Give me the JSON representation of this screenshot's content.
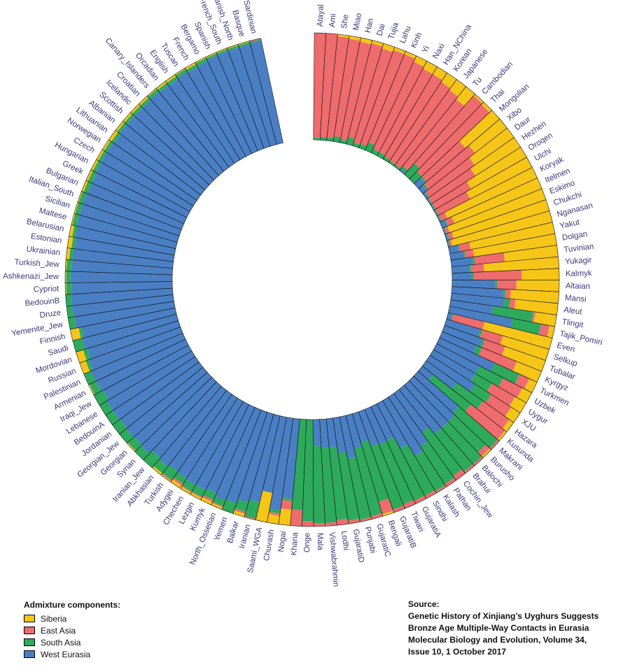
{
  "legend": {
    "title": "Admixture components:",
    "items": [
      {
        "label": "Siberia",
        "color": "#f5c518"
      },
      {
        "label": "East Asia",
        "color": "#ee6b6e"
      },
      {
        "label": "South Asia",
        "color": "#2eaa5c"
      },
      {
        "label": "West Eurasia",
        "color": "#4a7fc4"
      }
    ]
  },
  "source": {
    "heading": "Source:",
    "lines": [
      "Genetic History of Xinjiang’s Uyghurs Suggests",
      "Bronze Age Multiple-Way Contacts in Eurasia",
      "Molecular Biology and Evolution, Volume 34,",
      "Issue 10, 1 October 2017"
    ]
  },
  "chart_data": {
    "type": "circular-stacked-bar",
    "components": [
      "Siberia",
      "East Asia",
      "South Asia",
      "West Eurasia"
    ],
    "colors": [
      "#f5c518",
      "#ee6b6e",
      "#2eaa5c",
      "#4a7fc4"
    ],
    "populations": [
      {
        "name": "Atayal",
        "values": [
          0.0,
          0.98,
          0.02,
          0.0
        ]
      },
      {
        "name": "Ami",
        "values": [
          0.0,
          0.97,
          0.03,
          0.0
        ]
      },
      {
        "name": "She",
        "values": [
          0.02,
          0.95,
          0.03,
          0.0
        ]
      },
      {
        "name": "Miao",
        "values": [
          0.03,
          0.92,
          0.05,
          0.0
        ]
      },
      {
        "name": "Han",
        "values": [
          0.04,
          0.93,
          0.03,
          0.0
        ]
      },
      {
        "name": "Dai",
        "values": [
          0.03,
          0.9,
          0.07,
          0.0
        ]
      },
      {
        "name": "Tujia",
        "values": [
          0.05,
          0.92,
          0.03,
          0.0
        ]
      },
      {
        "name": "Lahu",
        "values": [
          0.03,
          0.93,
          0.04,
          0.0
        ]
      },
      {
        "name": "Kinh",
        "values": [
          0.03,
          0.89,
          0.08,
          0.0
        ]
      },
      {
        "name": "Yi",
        "values": [
          0.06,
          0.9,
          0.04,
          0.0
        ]
      },
      {
        "name": "Naxi",
        "values": [
          0.08,
          0.88,
          0.04,
          0.0
        ]
      },
      {
        "name": "Han_NChina",
        "values": [
          0.08,
          0.89,
          0.03,
          0.0
        ]
      },
      {
        "name": "Korean",
        "values": [
          0.1,
          0.88,
          0.02,
          0.0
        ]
      },
      {
        "name": "Japanese",
        "values": [
          0.12,
          0.86,
          0.02,
          0.0
        ]
      },
      {
        "name": "Tu",
        "values": [
          0.15,
          0.8,
          0.03,
          0.02
        ]
      },
      {
        "name": "Cambodian",
        "values": [
          0.02,
          0.84,
          0.14,
          0.0
        ]
      },
      {
        "name": "Thai",
        "values": [
          0.03,
          0.87,
          0.1,
          0.0
        ]
      },
      {
        "name": "Mongolian",
        "values": [
          0.42,
          0.48,
          0.02,
          0.08
        ]
      },
      {
        "name": "Xibo",
        "values": [
          0.38,
          0.55,
          0.02,
          0.05
        ]
      },
      {
        "name": "Daur",
        "values": [
          0.45,
          0.52,
          0.01,
          0.02
        ]
      },
      {
        "name": "Hezhen",
        "values": [
          0.5,
          0.48,
          0.01,
          0.01
        ]
      },
      {
        "name": "Oroqen",
        "values": [
          0.6,
          0.38,
          0.01,
          0.01
        ]
      },
      {
        "name": "Ulchi",
        "values": [
          0.65,
          0.33,
          0.01,
          0.01
        ]
      },
      {
        "name": "Koryak",
        "values": [
          0.92,
          0.06,
          0.01,
          0.01
        ]
      },
      {
        "name": "Itelmen",
        "values": [
          0.88,
          0.06,
          0.01,
          0.05
        ]
      },
      {
        "name": "Eskimo",
        "values": [
          0.95,
          0.03,
          0.01,
          0.01
        ]
      },
      {
        "name": "Chukchi",
        "values": [
          0.93,
          0.04,
          0.01,
          0.02
        ]
      },
      {
        "name": "Nganasan",
        "values": [
          0.96,
          0.02,
          0.01,
          0.01
        ]
      },
      {
        "name": "Yakut",
        "values": [
          0.8,
          0.1,
          0.01,
          0.09
        ]
      },
      {
        "name": "Dolgan",
        "values": [
          0.78,
          0.08,
          0.01,
          0.13
        ]
      },
      {
        "name": "Tuvinian",
        "values": [
          0.5,
          0.28,
          0.02,
          0.2
        ]
      },
      {
        "name": "Yukagir",
        "values": [
          0.7,
          0.12,
          0.02,
          0.16
        ]
      },
      {
        "name": "Kalmyk",
        "values": [
          0.35,
          0.45,
          0.02,
          0.18
        ]
      },
      {
        "name": "Altaian",
        "values": [
          0.4,
          0.18,
          0.02,
          0.4
        ]
      },
      {
        "name": "Mansi",
        "values": [
          0.45,
          0.05,
          0.02,
          0.48
        ]
      },
      {
        "name": "Aleut",
        "values": [
          0.4,
          0.05,
          0.05,
          0.5
        ]
      },
      {
        "name": "Tlingit",
        "values": [
          0.2,
          0.02,
          0.38,
          0.4
        ]
      },
      {
        "name": "Tajik_Pomiri",
        "values": [
          0.05,
          0.08,
          0.27,
          0.6
        ]
      },
      {
        "name": "Even",
        "values": [
          0.65,
          0.3,
          0.01,
          0.04
        ]
      },
      {
        "name": "Selkup",
        "values": [
          0.45,
          0.2,
          0.02,
          0.33
        ]
      },
      {
        "name": "Tubalar",
        "values": [
          0.4,
          0.2,
          0.02,
          0.38
        ]
      },
      {
        "name": "Kyrgyz",
        "values": [
          0.25,
          0.35,
          0.05,
          0.35
        ]
      },
      {
        "name": "Turkmen",
        "values": [
          0.08,
          0.1,
          0.25,
          0.57
        ]
      },
      {
        "name": "Uzbek",
        "values": [
          0.1,
          0.2,
          0.25,
          0.45
        ]
      },
      {
        "name": "Uygur",
        "values": [
          0.12,
          0.25,
          0.18,
          0.45
        ]
      },
      {
        "name": "XJU",
        "values": [
          0.1,
          0.22,
          0.18,
          0.5
        ]
      },
      {
        "name": "Hazara",
        "values": [
          0.05,
          0.3,
          0.3,
          0.35
        ]
      },
      {
        "name": "Kusunda",
        "values": [
          0.02,
          0.4,
          0.45,
          0.13
        ]
      },
      {
        "name": "Makrani",
        "values": [
          0.0,
          0.02,
          0.48,
          0.5
        ]
      },
      {
        "name": "Burusho",
        "values": [
          0.02,
          0.05,
          0.4,
          0.53
        ]
      },
      {
        "name": "Balochi",
        "values": [
          0.0,
          0.02,
          0.45,
          0.53
        ]
      },
      {
        "name": "Brahui",
        "values": [
          0.0,
          0.02,
          0.45,
          0.53
        ]
      },
      {
        "name": "Cochin_Jew",
        "values": [
          0.0,
          0.05,
          0.5,
          0.45
        ]
      },
      {
        "name": "Pathan",
        "values": [
          0.0,
          0.03,
          0.42,
          0.55
        ]
      },
      {
        "name": "Kalash",
        "values": [
          0.0,
          0.02,
          0.38,
          0.6
        ]
      },
      {
        "name": "Sindhi",
        "values": [
          0.0,
          0.03,
          0.5,
          0.47
        ]
      },
      {
        "name": "GujaratiA",
        "values": [
          0.0,
          0.03,
          0.62,
          0.35
        ]
      },
      {
        "name": "Tiwari",
        "values": [
          0.0,
          0.04,
          0.6,
          0.36
        ]
      },
      {
        "name": "GujaratiB",
        "values": [
          0.0,
          0.03,
          0.63,
          0.34
        ]
      },
      {
        "name": "Bengali",
        "values": [
          0.02,
          0.12,
          0.58,
          0.28
        ]
      },
      {
        "name": "GujaratiC",
        "values": [
          0.0,
          0.03,
          0.65,
          0.32
        ]
      },
      {
        "name": "Punjabi",
        "values": [
          0.0,
          0.02,
          0.58,
          0.4
        ]
      },
      {
        "name": "GujaratiD",
        "values": [
          0.0,
          0.03,
          0.64,
          0.33
        ]
      },
      {
        "name": "Lodhi",
        "values": [
          0.0,
          0.05,
          0.68,
          0.27
        ]
      },
      {
        "name": "Vishwabrahmin",
        "values": [
          0.0,
          0.03,
          0.7,
          0.27
        ]
      },
      {
        "name": "Mala",
        "values": [
          0.0,
          0.03,
          0.72,
          0.25
        ]
      },
      {
        "name": "Onge",
        "values": [
          0.0,
          0.05,
          0.95,
          0.0
        ]
      },
      {
        "name": "Kharia",
        "values": [
          0.0,
          0.15,
          0.85,
          0.0
        ]
      },
      {
        "name": "Nogai",
        "values": [
          0.15,
          0.08,
          0.02,
          0.75
        ]
      },
      {
        "name": "Chuvash",
        "values": [
          0.08,
          0.02,
          0.03,
          0.87
        ]
      },
      {
        "name": "Saami_WGA",
        "values": [
          0.28,
          0.0,
          0.0,
          0.72
        ]
      },
      {
        "name": "Iranian",
        "values": [
          0.0,
          0.01,
          0.16,
          0.83
        ]
      },
      {
        "name": "Balkar",
        "values": [
          0.03,
          0.02,
          0.09,
          0.86
        ]
      },
      {
        "name": "Yemen",
        "values": [
          0.0,
          0.0,
          0.1,
          0.9
        ]
      },
      {
        "name": "North_Ossetian",
        "values": [
          0.02,
          0.01,
          0.06,
          0.91
        ]
      },
      {
        "name": "Kumyk",
        "values": [
          0.03,
          0.02,
          0.07,
          0.88
        ]
      },
      {
        "name": "Lezgin",
        "values": [
          0.02,
          0.01,
          0.07,
          0.9
        ]
      },
      {
        "name": "Chechen",
        "values": [
          0.02,
          0.01,
          0.07,
          0.9
        ]
      },
      {
        "name": "Adygei",
        "values": [
          0.03,
          0.02,
          0.06,
          0.89
        ]
      },
      {
        "name": "Turkish",
        "values": [
          0.01,
          0.01,
          0.1,
          0.88
        ]
      },
      {
        "name": "Abkhasian",
        "values": [
          0.02,
          0.0,
          0.08,
          0.9
        ]
      },
      {
        "name": "Iranian_Jew",
        "values": [
          0.0,
          0.0,
          0.12,
          0.88
        ]
      },
      {
        "name": "Syrian",
        "values": [
          0.0,
          0.0,
          0.08,
          0.92
        ]
      },
      {
        "name": "Georgian",
        "values": [
          0.01,
          0.0,
          0.08,
          0.91
        ]
      },
      {
        "name": "Georgian_Jew",
        "values": [
          0.0,
          0.0,
          0.08,
          0.92
        ]
      },
      {
        "name": "Jordanian",
        "values": [
          0.0,
          0.0,
          0.09,
          0.91
        ]
      },
      {
        "name": "BedouinA",
        "values": [
          0.0,
          0.0,
          0.08,
          0.92
        ]
      },
      {
        "name": "Lebanese",
        "values": [
          0.0,
          0.0,
          0.08,
          0.92
        ]
      },
      {
        "name": "Iraqi_Jew",
        "values": [
          0.0,
          0.0,
          0.1,
          0.9
        ]
      },
      {
        "name": "Armenian",
        "values": [
          0.01,
          0.0,
          0.07,
          0.92
        ]
      },
      {
        "name": "Palestinian",
        "values": [
          0.0,
          0.0,
          0.07,
          0.93
        ]
      },
      {
        "name": "Russian",
        "values": [
          0.06,
          0.0,
          0.03,
          0.91
        ]
      },
      {
        "name": "Mordovian",
        "values": [
          0.07,
          0.0,
          0.04,
          0.89
        ]
      },
      {
        "name": "Saudi",
        "values": [
          0.0,
          0.0,
          0.09,
          0.91
        ]
      },
      {
        "name": "Finnish",
        "values": [
          0.08,
          0.0,
          0.03,
          0.89
        ]
      },
      {
        "name": "Yemenite_Jew",
        "values": [
          0.0,
          0.0,
          0.06,
          0.94
        ]
      },
      {
        "name": "Druze",
        "values": [
          0.0,
          0.0,
          0.05,
          0.95
        ]
      },
      {
        "name": "BedouinB",
        "values": [
          0.0,
          0.0,
          0.05,
          0.95
        ]
      },
      {
        "name": "Cypriot",
        "values": [
          0.01,
          0.0,
          0.05,
          0.94
        ]
      },
      {
        "name": "Ashkenazi_Jew",
        "values": [
          0.01,
          0.0,
          0.04,
          0.95
        ]
      },
      {
        "name": "Turkish_Jew",
        "values": [
          0.01,
          0.0,
          0.05,
          0.94
        ]
      },
      {
        "name": "Ukrainian",
        "values": [
          0.03,
          0.0,
          0.03,
          0.94
        ]
      },
      {
        "name": "Estonian",
        "values": [
          0.04,
          0.0,
          0.03,
          0.93
        ]
      },
      {
        "name": "Belarusian",
        "values": [
          0.03,
          0.0,
          0.03,
          0.94
        ]
      },
      {
        "name": "Maltese",
        "values": [
          0.01,
          0.0,
          0.04,
          0.95
        ]
      },
      {
        "name": "Sicilian",
        "values": [
          0.01,
          0.0,
          0.04,
          0.95
        ]
      },
      {
        "name": "Italian_South",
        "values": [
          0.01,
          0.0,
          0.04,
          0.95
        ]
      },
      {
        "name": "Bulgarian",
        "values": [
          0.02,
          0.0,
          0.04,
          0.94
        ]
      },
      {
        "name": "Greek",
        "values": [
          0.02,
          0.0,
          0.04,
          0.94
        ]
      },
      {
        "name": "Hungarian",
        "values": [
          0.02,
          0.0,
          0.03,
          0.95
        ]
      },
      {
        "name": "Czech",
        "values": [
          0.02,
          0.0,
          0.03,
          0.95
        ]
      },
      {
        "name": "Norwegian",
        "values": [
          0.02,
          0.0,
          0.03,
          0.95
        ]
      },
      {
        "name": "Lithuanian",
        "values": [
          0.03,
          0.0,
          0.03,
          0.94
        ]
      },
      {
        "name": "Albanian",
        "values": [
          0.02,
          0.0,
          0.03,
          0.95
        ]
      },
      {
        "name": "Scottish",
        "values": [
          0.02,
          0.0,
          0.03,
          0.95
        ]
      },
      {
        "name": "Icelandic",
        "values": [
          0.02,
          0.0,
          0.03,
          0.95
        ]
      },
      {
        "name": "Croatian",
        "values": [
          0.02,
          0.0,
          0.03,
          0.95
        ]
      },
      {
        "name": "Canary_Islanders",
        "values": [
          0.01,
          0.0,
          0.03,
          0.96
        ]
      },
      {
        "name": "Orcadian",
        "values": [
          0.02,
          0.0,
          0.03,
          0.95
        ]
      },
      {
        "name": "English",
        "values": [
          0.02,
          0.0,
          0.03,
          0.95
        ]
      },
      {
        "name": "Tuscan",
        "values": [
          0.01,
          0.0,
          0.03,
          0.96
        ]
      },
      {
        "name": "French",
        "values": [
          0.02,
          0.0,
          0.03,
          0.95
        ]
      },
      {
        "name": "Bergamo",
        "values": [
          0.01,
          0.0,
          0.03,
          0.96
        ]
      },
      {
        "name": "Spanish",
        "values": [
          0.01,
          0.0,
          0.02,
          0.97
        ]
      },
      {
        "name": "French_South",
        "values": [
          0.01,
          0.0,
          0.02,
          0.97
        ]
      },
      {
        "name": "Spanish_North",
        "values": [
          0.01,
          0.0,
          0.02,
          0.97
        ]
      },
      {
        "name": "Basque",
        "values": [
          0.01,
          0.0,
          0.02,
          0.97
        ]
      },
      {
        "name": "Sardinian",
        "values": [
          0.0,
          0.01,
          0.01,
          0.98
        ]
      }
    ]
  }
}
